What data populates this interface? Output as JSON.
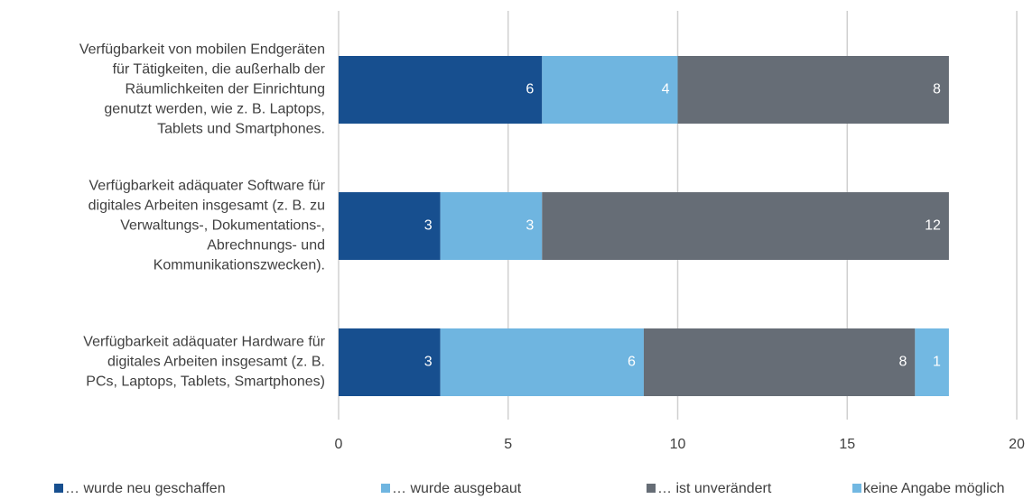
{
  "chart_data": {
    "type": "stacked_barh",
    "categories": [
      [
        "Verfügbarkeit von mobilen Endgeräten",
        "für Tätigkeiten, die außerhalb der",
        "Räumlichkeiten der Einrichtung",
        "genutzt werden, wie z. B. Laptops,",
        "Tablets und Smartphones."
      ],
      [
        "Verfügbarkeit adäquater Software für",
        "digitales Arbeiten insgesamt (z. B. zu",
        "Verwaltungs-, Dokumentations-,",
        "Abrechnungs- und",
        "Kommunikationszwecken)."
      ],
      [
        "Verfügbarkeit adäquater Hardware für",
        "digitales Arbeiten insgesamt (z. B.",
        "PCs, Laptops, Tablets, Smartphones)"
      ]
    ],
    "series": [
      {
        "name": "… wurde neu geschaffen",
        "color": "#174f8f",
        "values": [
          6,
          3,
          3
        ]
      },
      {
        "name": "… wurde ausgebaut",
        "color": "#6fb5e0",
        "values": [
          4,
          3,
          6
        ]
      },
      {
        "name": "… ist unverändert",
        "color": "#666d76",
        "values": [
          8,
          12,
          8
        ]
      },
      {
        "name": "keine Angabe möglich",
        "color": "#72b8e2",
        "values": [
          null,
          null,
          1
        ]
      }
    ],
    "xlim": [
      0,
      20
    ],
    "xticks": [
      0,
      5,
      10,
      15,
      20
    ],
    "grid": true,
    "legend": "bottom"
  }
}
